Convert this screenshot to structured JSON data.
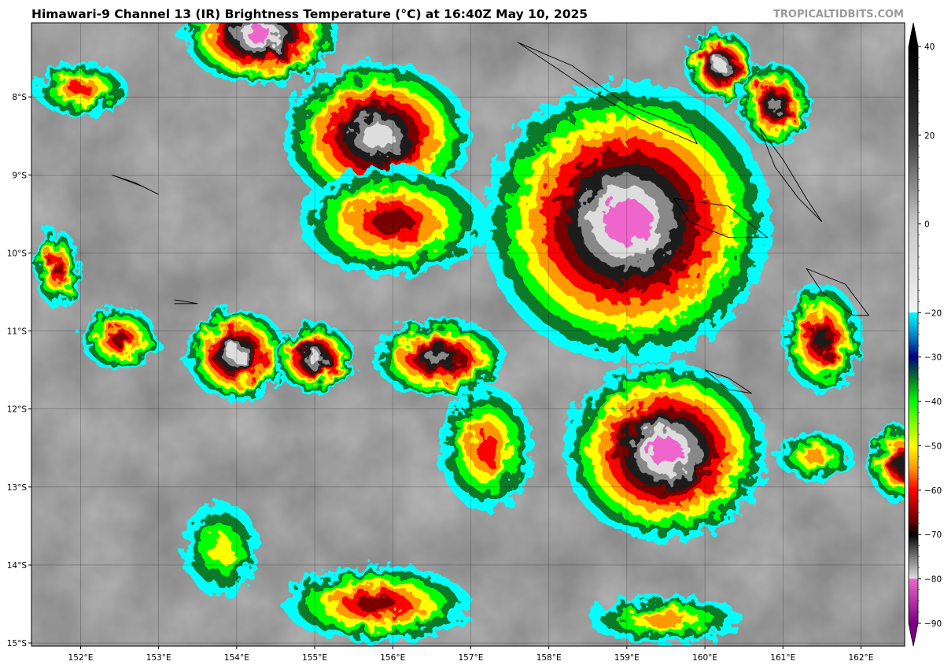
{
  "title": "Himawari-9 Channel 13 (IR) Brightness Temperature (°C) at 16:40Z May 10, 2025",
  "brand": "TROPICALTIDBITS.COM",
  "map": {
    "lon_range": [
      151.37,
      162.56
    ],
    "lat_range": [
      -15.04,
      -7.05
    ],
    "lon_ticks": [
      152,
      153,
      154,
      155,
      156,
      157,
      158,
      159,
      160,
      161,
      162
    ],
    "lon_labels": [
      "152°E",
      "153°E",
      "154°E",
      "155°E",
      "156°E",
      "157°E",
      "158°E",
      "159°E",
      "160°E",
      "161°E",
      "162°E"
    ],
    "lat_ticks": [
      -8,
      -9,
      -10,
      -11,
      -12,
      -13,
      -14,
      -15
    ],
    "lat_labels": [
      "8°S",
      "9°S",
      "10°S",
      "11°S",
      "12°S",
      "13°S",
      "14°S",
      "15°S"
    ],
    "gridlines": true
  },
  "colorbar": {
    "ticks": [
      40,
      20,
      0,
      -20,
      -30,
      -40,
      -50,
      -60,
      -70,
      -80,
      -90
    ],
    "labels": [
      "40",
      "20",
      "0",
      "−20",
      "−30",
      "−40",
      "−50",
      "−60",
      "−70",
      "−80",
      "−90"
    ],
    "range": [
      -90,
      40
    ],
    "stops": [
      {
        "t": 40,
        "c": "#000000"
      },
      {
        "t": 20,
        "c": "#3a3a3a"
      },
      {
        "t": 0,
        "c": "#c8c8c8"
      },
      {
        "t": -19.9,
        "c": "#f4f4f4"
      },
      {
        "t": -20,
        "c": "#00ffff"
      },
      {
        "t": -25,
        "c": "#0088cc"
      },
      {
        "t": -30,
        "c": "#000080"
      },
      {
        "t": -35,
        "c": "#0a7a2a"
      },
      {
        "t": -40,
        "c": "#00ff00"
      },
      {
        "t": -50,
        "c": "#ffff00"
      },
      {
        "t": -55,
        "c": "#ff9900"
      },
      {
        "t": -60,
        "c": "#ff0000"
      },
      {
        "t": -67,
        "c": "#6a0000"
      },
      {
        "t": -70,
        "c": "#000000"
      },
      {
        "t": -75,
        "c": "#777777"
      },
      {
        "t": -79.9,
        "c": "#dddddd"
      },
      {
        "t": -80,
        "c": "#ee66cc"
      },
      {
        "t": -90,
        "c": "#7a0080"
      }
    ]
  }
}
